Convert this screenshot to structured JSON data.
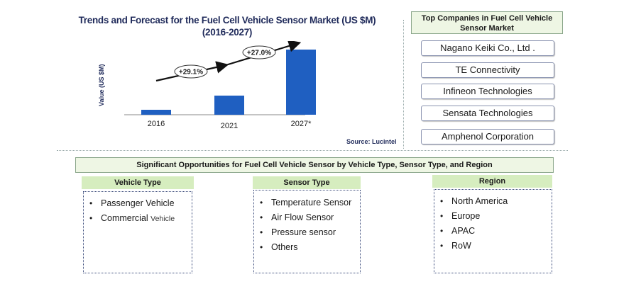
{
  "chart": {
    "title_line1": "Trends and Forecast for the Fuel Cell Vehicle Sensor Market (US $M)",
    "title_line2": "(2016-2027)",
    "ylabel": "Value (US $M)",
    "source": "Source: Lucintel",
    "growth_labels": [
      "+29.1%",
      "+27.0%"
    ],
    "bar_color": "#1f5fc1"
  },
  "chart_data": {
    "type": "bar",
    "categories": [
      "2016",
      "2021",
      "2027*"
    ],
    "values": [
      7,
      27,
      92
    ],
    "ylabel": "Value (US $M)",
    "title": "Trends and Forecast for the Fuel Cell Vehicle Sensor Market (US $M) (2016-2027)",
    "annotations": [
      "+29.1%",
      "+27.0%"
    ]
  },
  "companies": {
    "title": "Top Companies in Fuel Cell Vehicle Sensor Market",
    "items": [
      "Nagano Keiki Co., Ltd .",
      "TE Connectivity",
      "Infineon Technologies",
      "Sensata Technologies",
      "Amphenol Corporation"
    ]
  },
  "opportunities": {
    "banner": "Significant Opportunities for Fuel Cell Vehicle Sensor by Vehicle Type, Sensor Type, and Region",
    "vehicle_type": {
      "header": "Vehicle Type",
      "item1": "Passenger Vehicle",
      "item2_main": "Commercial",
      "item2_small": "Vehicle"
    },
    "sensor_type": {
      "header": "Sensor Type",
      "items": [
        "Temperature Sensor",
        "Air Flow Sensor",
        "Pressure sensor",
        "Others"
      ]
    },
    "region": {
      "header": "Region",
      "items": [
        "North America",
        "Europe",
        "APAC",
        "RoW"
      ]
    }
  }
}
